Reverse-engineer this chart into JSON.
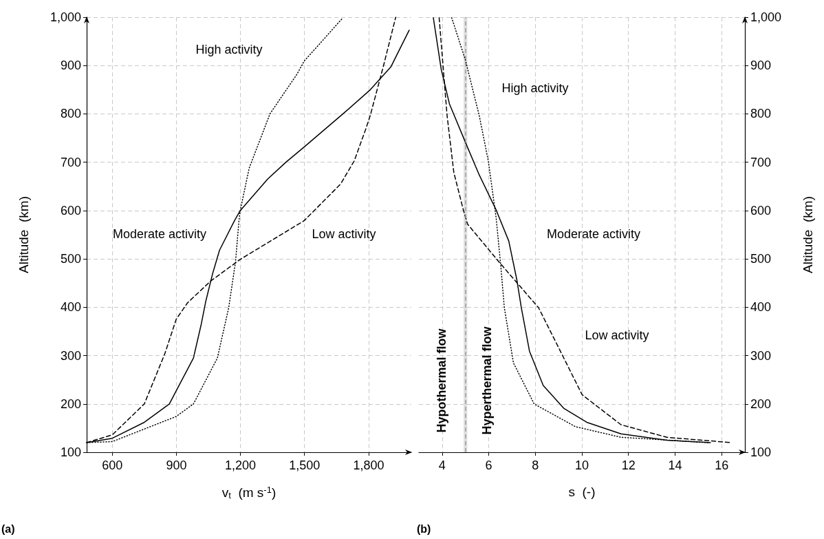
{
  "chart_data": [
    {
      "type": "line",
      "xlabel": "v$_{t}$  (m s$^{-1}$)",
      "ylabel": "Altitude  (km)",
      "xlim": [
        480,
        2000
      ],
      "xticks": [
        600,
        900,
        {
          "value": 1200,
          "label": "1,200"
        },
        {
          "value": 1500,
          "label": "1,500"
        },
        {
          "value": 1800,
          "label": "1,800"
        }
      ],
      "ylim": [
        100,
        1000
      ],
      "yticks": [
        100,
        200,
        300,
        400,
        500,
        600,
        700,
        800,
        900,
        {
          "value": 1000,
          "label": "1,000"
        }
      ],
      "grid": true,
      "marker": "none",
      "series": [
        {
          "color": "#000000",
          "line_style": "solid",
          "x": [
            480,
            600,
            750,
            867,
            980,
            1017,
            1038,
            1070,
            1102,
            1172,
            1199,
            1327,
            1413,
            1497,
            1680,
            1808,
            1904,
            1990
          ],
          "values": [
            120,
            129,
            162,
            200,
            295,
            366,
            413,
            470,
            518,
            579,
            600,
            665,
            700,
            731,
            800,
            850,
            897,
            973
          ]
        },
        {
          "color": "#000000",
          "line_style": "dotted",
          "x": [
            480,
            600,
            899,
            980,
            1092,
            1145,
            1177,
            1193,
            1199,
            1241,
            1338,
            1466,
            1498,
            1680
          ],
          "values": [
            120,
            122,
            174,
            200,
            295,
            399,
            494,
            579,
            600,
            688,
            800,
            883,
            909,
            999
          ]
        },
        {
          "color": "#000000",
          "line_style": "dashed",
          "x": [
            480,
            600,
            750,
            846,
            899,
            952,
            1060,
            1199,
            1498,
            1669,
            1733,
            1787,
            1808,
            1870,
            1927
          ],
          "values": [
            120,
            136,
            200,
            304,
            375,
            409,
            454,
            499,
            579,
            655,
            703,
            769,
            797,
            900,
            1000
          ]
        }
      ],
      "annotations": [
        "High activity",
        "Moderate activity",
        "Low activity",
        "(a)"
      ]
    },
    {
      "type": "line",
      "xlabel": "s  (-)",
      "ylabel": "Altitude  (km)",
      "xlim": [
        3,
        17
      ],
      "xticks": [
        4,
        6,
        8,
        10,
        12,
        14,
        16
      ],
      "ylim": [
        100,
        1000
      ],
      "yticks": [
        100,
        200,
        300,
        400,
        500,
        600,
        700,
        800,
        900,
        {
          "value": 1000,
          "label": "1,000"
        }
      ],
      "grid": true,
      "marker": "none",
      "series": [
        {
          "color": "#000000",
          "line_style": "solid",
          "x": [
            3.62,
            3.96,
            4.31,
            5.0,
            5.59,
            6.32,
            6.86,
            7.21,
            7.4,
            7.75,
            8.34,
            9.22,
            10.21,
            11.68,
            13.65,
            15.52
          ],
          "values": [
            999,
            892,
            821,
            741,
            674,
            601,
            537,
            456,
            399,
            309,
            238,
            191,
            162,
            138,
            125,
            120
          ]
        },
        {
          "color": "#000000",
          "line_style": "dashed",
          "x": [
            3.87,
            4.21,
            4.5,
            4.9,
            5.09,
            6.47,
            8.14,
            9.13,
            10.01,
            11.68,
            13.65,
            16.4
          ],
          "values": [
            999,
            797,
            679,
            603,
            572,
            492,
            399,
            304,
            219,
            157,
            131,
            120
          ]
        },
        {
          "color": "#000000",
          "line_style": "dotted",
          "x": [
            4.41,
            5.0,
            5.59,
            5.98,
            6.32,
            6.52,
            6.67,
            7.06,
            7.95,
            9.72,
            11.68,
            15.42
          ],
          "values": [
            999,
            911,
            797,
            703,
            584,
            484,
            399,
            285,
            200,
            153,
            131,
            120
          ]
        }
      ],
      "bands": [
        {
          "axis": "x",
          "from": 4.92,
          "to": 5.08,
          "color": "#e0e0e0"
        }
      ],
      "ref_lines": [
        {
          "axis": "x",
          "value": 5,
          "color": "#999999",
          "line_style": "dashed"
        }
      ],
      "annotations": [
        "High activity",
        "Moderate activity",
        "Low activity",
        "Hypothermal flow",
        "Hyperthermal flow",
        "(b)"
      ]
    }
  ]
}
